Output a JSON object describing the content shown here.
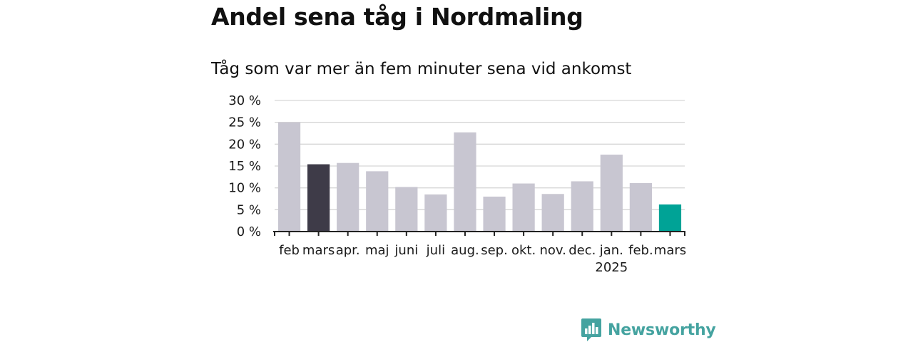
{
  "title": "Andel sena tåg i Nordmaling",
  "subtitle": "Tåg som var mer än fem minuter sena vid ankomst",
  "brand": {
    "name": "Newsworthy",
    "color": "#45a3a0"
  },
  "colors": {
    "default_bar": "#c8c6d1",
    "previous_year_bar": "#3e3b48",
    "latest_bar": "#00a396",
    "grid": "#d6d6d6",
    "axis": "#222222"
  },
  "chart_data": {
    "type": "bar",
    "categories": [
      "feb",
      "mars",
      "apr.",
      "maj",
      "juni",
      "juli",
      "aug.",
      "sep.",
      "okt.",
      "nov.",
      "dec.",
      "jan.",
      "feb.",
      "mars"
    ],
    "year_labels": [
      "",
      "",
      "",
      "",
      "",
      "",
      "",
      "",
      "",
      "",
      "",
      "2025",
      "",
      ""
    ],
    "values": [
      25.0,
      15.4,
      15.7,
      13.8,
      10.2,
      8.5,
      22.7,
      8.0,
      11.0,
      8.6,
      11.5,
      17.6,
      11.1,
      6.2
    ],
    "highlight": {
      "1": "previous_year_bar",
      "13": "latest_bar"
    },
    "ylim": [
      0,
      30
    ],
    "yticks": [
      0,
      5,
      10,
      15,
      20,
      25,
      30
    ],
    "ytick_labels": [
      "0 %",
      "5 %",
      "10 %",
      "15 %",
      "20 %",
      "25 %",
      "30 %"
    ],
    "xlabel": "",
    "ylabel": "",
    "grid": true
  }
}
